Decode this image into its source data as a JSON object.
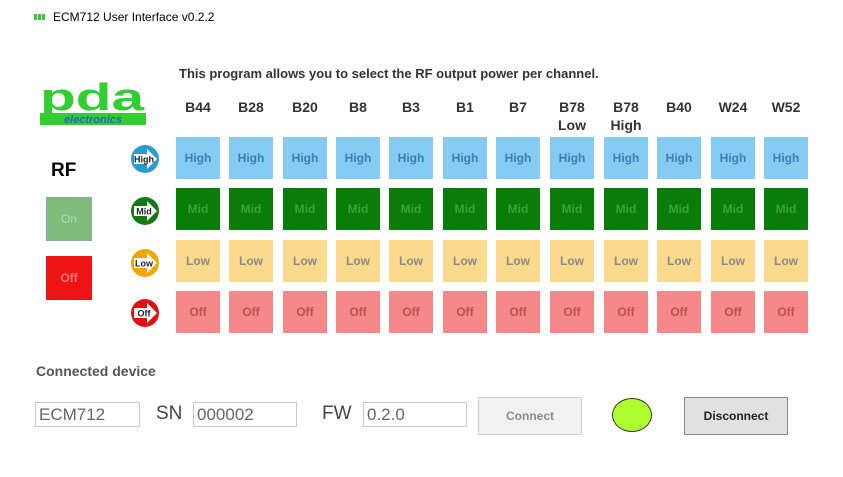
{
  "window": {
    "title": "ECM712 User Interface v0.2.2",
    "icon": "pda-app-icon"
  },
  "logo": {
    "brand": "pda",
    "subtitle": "electronics",
    "brand_color": "#33cc33",
    "subtitle_color": "#2266cc"
  },
  "intro_text": "This program allows you to select the RF output power per channel.",
  "channels": [
    {
      "top": "B44",
      "bottom": ""
    },
    {
      "top": "B28",
      "bottom": ""
    },
    {
      "top": "B20",
      "bottom": ""
    },
    {
      "top": "B8",
      "bottom": ""
    },
    {
      "top": "B3",
      "bottom": ""
    },
    {
      "top": "B1",
      "bottom": ""
    },
    {
      "top": "B7",
      "bottom": ""
    },
    {
      "top": "B78",
      "bottom": "Low"
    },
    {
      "top": "B78",
      "bottom": "High"
    },
    {
      "top": "B40",
      "bottom": ""
    },
    {
      "top": "W24",
      "bottom": ""
    },
    {
      "top": "W52",
      "bottom": ""
    }
  ],
  "levels": [
    {
      "key": "high",
      "label": "High",
      "icon": "high-arrow-icon",
      "icon_color": "#2a9ad6"
    },
    {
      "key": "mid",
      "label": "Mid",
      "icon": "mid-arrow-icon",
      "icon_color": "#127a12"
    },
    {
      "key": "low",
      "label": "Low",
      "icon": "low-arrow-icon",
      "icon_color": "#f0a800"
    },
    {
      "key": "off",
      "label": "Off",
      "icon": "off-arrow-icon",
      "icon_color": "#e01010"
    }
  ],
  "rf": {
    "label": "RF",
    "on_label": "On",
    "off_label": "Off"
  },
  "connection": {
    "heading": "Connected device",
    "device": "ECM712",
    "sn_label": "SN",
    "sn": "000002",
    "fw_label": "FW",
    "fw": "0.2.0",
    "connect_label": "Connect",
    "disconnect_label": "Disconnect",
    "status_color": "#adff2f"
  },
  "colors": {
    "high": "#86cbf2",
    "mid": "#0a7d08",
    "low": "#fbd98d",
    "off": "#f6888a",
    "rf_off": "#ec1414"
  }
}
